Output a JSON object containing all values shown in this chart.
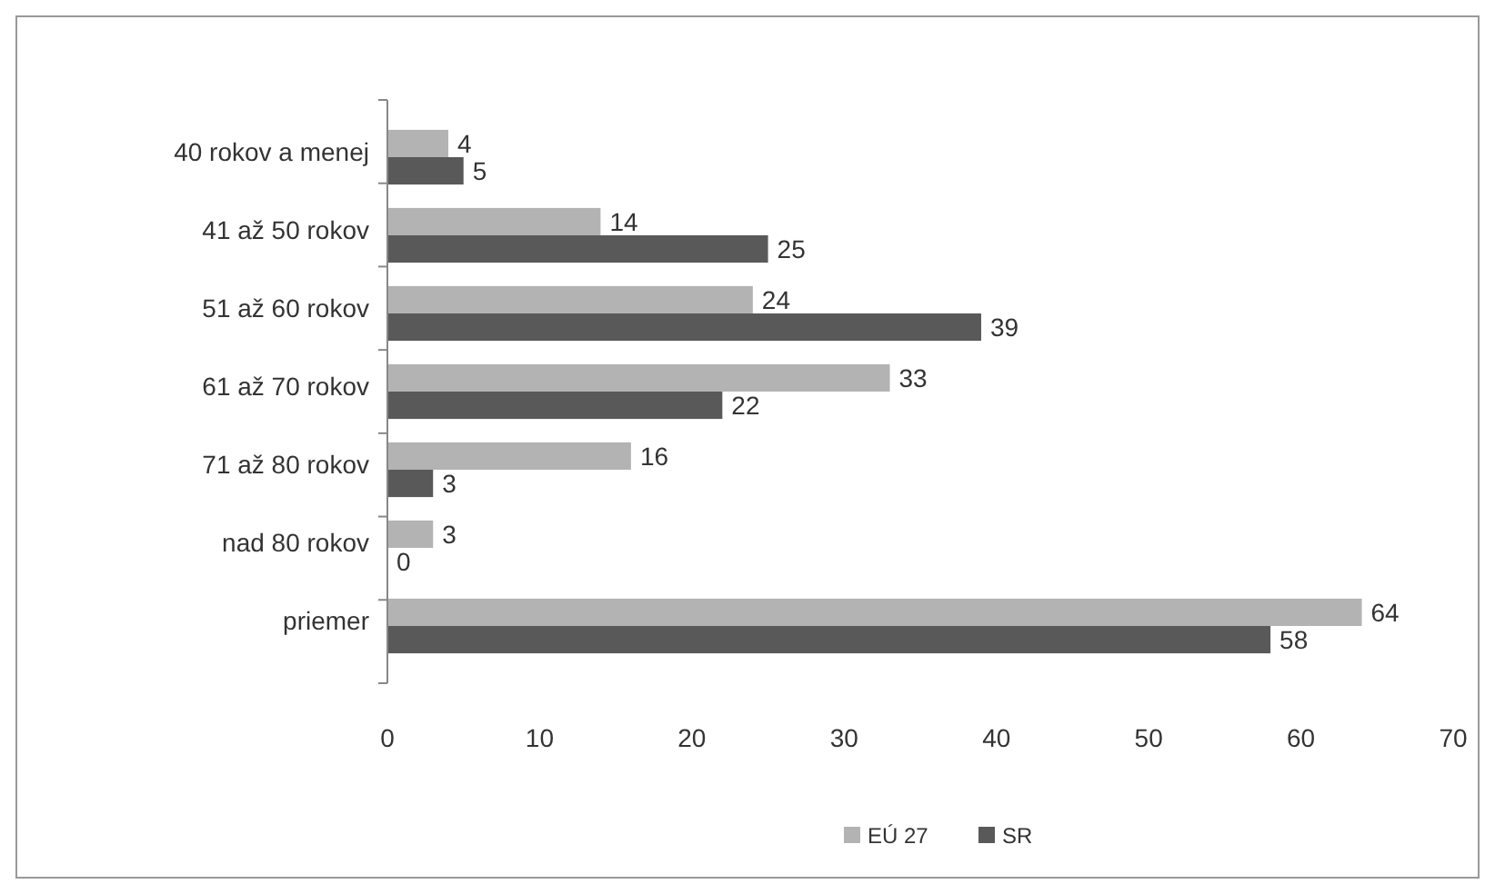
{
  "chart_data": {
    "type": "bar",
    "orientation": "horizontal",
    "categories": [
      "40 rokov a menej",
      "41 až 50 rokov",
      "51 až 60 rokov",
      "61 až 70 rokov",
      "71 až 80 rokov",
      "nad 80 rokov",
      "priemer"
    ],
    "series": [
      {
        "name": "EÚ 27",
        "color": "#b3b3b3",
        "values": [
          4,
          14,
          24,
          33,
          16,
          3,
          64
        ]
      },
      {
        "name": "SR",
        "color": "#595959",
        "values": [
          5,
          25,
          39,
          22,
          3,
          0,
          58
        ]
      }
    ],
    "xlim": [
      0,
      70
    ],
    "xticks": [
      0,
      10,
      20,
      30,
      40,
      50,
      60,
      70
    ],
    "data_labels": true,
    "legend": "bottom",
    "grid": false
  }
}
